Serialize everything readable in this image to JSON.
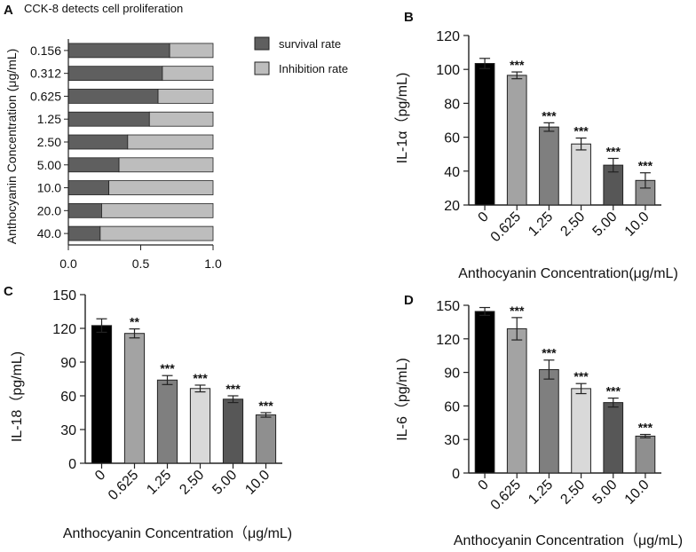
{
  "chart_data": [
    {
      "panel": "A",
      "type": "bar",
      "stacked": true,
      "orientation": "horizontal",
      "title": "CCK-8 detects cell proliferation",
      "ylabel": "Anthocyanin Concentration  (μg/mL)",
      "xlabel": "",
      "categories": [
        "0.156",
        "0.312",
        "0.625",
        "1.25",
        "2.50",
        "5.00",
        "10.0",
        "20.0",
        "40.0"
      ],
      "series": [
        {
          "name": "survival rate",
          "color": "#5f5f5f",
          "values": [
            0.7,
            0.65,
            0.62,
            0.56,
            0.41,
            0.35,
            0.28,
            0.23,
            0.22
          ]
        },
        {
          "name": "Inhibition rate",
          "color": "#bdbdbd",
          "values": [
            0.3,
            0.35,
            0.38,
            0.44,
            0.59,
            0.65,
            0.72,
            0.77,
            0.78
          ]
        }
      ],
      "xlim": [
        0,
        1.0
      ],
      "xticks": [
        "0.0",
        "0.5",
        "1.0"
      ],
      "legend": "top-right"
    },
    {
      "panel": "B",
      "type": "bar",
      "ylabel": "IL-1α（pg/mL)",
      "xlabel": "Anthocyanin Concentration(μg/mL)",
      "categories": [
        "0",
        "0.625",
        "1.25",
        "2.50",
        "5.00",
        "10.0"
      ],
      "values": [
        103.5,
        96.5,
        66,
        56,
        43.5,
        34.5
      ],
      "errors": [
        3.0,
        2.0,
        2.5,
        3.5,
        4.0,
        4.5
      ],
      "significance": [
        "",
        "***",
        "***",
        "***",
        "***",
        "***"
      ],
      "ylim": [
        20,
        120
      ],
      "yticks": [
        "20",
        "40",
        "60",
        "80",
        "100",
        "120"
      ],
      "colors": [
        "#000000",
        "#a3a3a3",
        "#7f7f7f",
        "#d9d9d9",
        "#575757",
        "#8f8f8f"
      ]
    },
    {
      "panel": "C",
      "type": "bar",
      "ylabel": "IL-18（pg/mL)",
      "xlabel": "Anthocyanin Concentration（μg/mL)",
      "categories": [
        "0",
        "0.625",
        "1.25",
        "2.50",
        "5.00",
        "10.0"
      ],
      "values": [
        122.5,
        115.5,
        74,
        66.5,
        57,
        43
      ],
      "errors": [
        6.0,
        4.0,
        4.0,
        3.0,
        3.0,
        2.0
      ],
      "significance": [
        "",
        "**",
        "***",
        "***",
        "***",
        "***"
      ],
      "ylim": [
        0,
        150
      ],
      "yticks": [
        "0",
        "30",
        "60",
        "90",
        "120",
        "150"
      ],
      "colors": [
        "#000000",
        "#a3a3a3",
        "#7f7f7f",
        "#d9d9d9",
        "#575757",
        "#8f8f8f"
      ]
    },
    {
      "panel": "D",
      "type": "bar",
      "ylabel": "IL-6（pg/mL)",
      "xlabel": "Anthocyanin Concentration（μg/mL)",
      "categories": [
        "0",
        "0.625",
        "1.25",
        "2.50",
        "5.00",
        "10.0"
      ],
      "values": [
        144.5,
        129,
        92.5,
        75.5,
        63,
        33
      ],
      "errors": [
        3.5,
        10.0,
        8.5,
        4.5,
        4.0,
        1.5
      ],
      "significance": [
        "",
        "***",
        "***",
        "***",
        "***",
        "***"
      ],
      "ylim": [
        0,
        150
      ],
      "yticks": [
        "0",
        "30",
        "60",
        "90",
        "120",
        "150"
      ],
      "colors": [
        "#000000",
        "#a3a3a3",
        "#7f7f7f",
        "#d9d9d9",
        "#575757",
        "#8f8f8f"
      ]
    }
  ]
}
